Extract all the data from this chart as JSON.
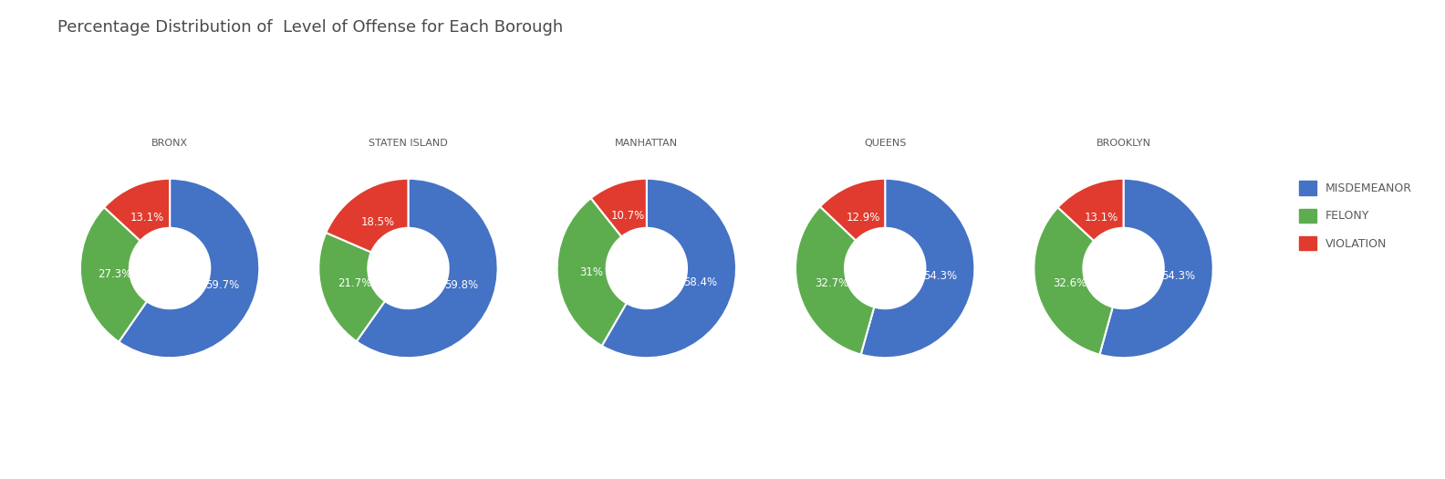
{
  "title": "Percentage Distribution of  Level of Offense for Each Borough",
  "boroughs": [
    "BRONX",
    "STATEN ISLAND",
    "MANHATTAN",
    "QUEENS",
    "BROOKLYN"
  ],
  "categories": [
    "MISDEMEANOR",
    "FELONY",
    "VIOLATION"
  ],
  "colors": [
    "#4472C4",
    "#5DAD4E",
    "#E03B2E"
  ],
  "data": {
    "BRONX": [
      59.7,
      27.3,
      13.1
    ],
    "STATEN ISLAND": [
      59.8,
      21.7,
      18.5
    ],
    "MANHATTAN": [
      58.4,
      31.0,
      10.7
    ],
    "QUEENS": [
      54.3,
      32.7,
      12.9
    ],
    "BROOKLYN": [
      54.3,
      32.6,
      13.1
    ]
  },
  "labels": {
    "BRONX": [
      "59.7%",
      "27.3%",
      "13.1%"
    ],
    "STATEN ISLAND": [
      "59.8%",
      "21.7%",
      "18.5%"
    ],
    "MANHATTAN": [
      "58.4%",
      "31%",
      "10.7%"
    ],
    "QUEENS": [
      "54.3%",
      "32.7%",
      "12.9%"
    ],
    "BROOKLYN": [
      "54.3%",
      "32.6%",
      "13.1%"
    ]
  },
  "background_color": "#FFFFFF",
  "title_fontsize": 13,
  "borough_fontsize": 8,
  "label_fontsize": 8.5,
  "legend_fontsize": 9
}
